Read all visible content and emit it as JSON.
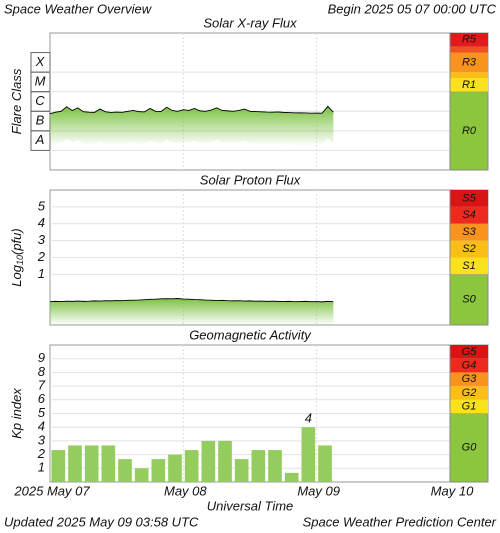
{
  "header": {
    "title": "Space Weather Overview",
    "begin": "Begin 2025 05 07 00:00 UTC"
  },
  "x_axis": {
    "labels": [
      "2025 May 07",
      "May 08",
      "May 09",
      "May 10"
    ],
    "title": "Universal Time"
  },
  "footer": {
    "updated": "Updated 2025 May 09 03:58 UTC",
    "source": "Space Weather Prediction Center"
  },
  "chart_data": [
    {
      "type": "line",
      "title": "Solar X-ray Flux",
      "ylabel": "Flare Class",
      "log": true,
      "ylim": [
        1e-09,
        0.01
      ],
      "yticks": [
        {
          "value": 1e-08,
          "label": "A"
        },
        {
          "value": 1e-07,
          "label": "B"
        },
        {
          "value": 1e-06,
          "label": "C"
        },
        {
          "value": 1e-05,
          "label": "M"
        },
        {
          "value": 0.0001,
          "label": "X"
        }
      ],
      "color": "#000000",
      "fill_color": "#7cc242",
      "values": [
        7.5e-07,
        9e-07,
        1e-06,
        1.7e-06,
        1.1e-06,
        1.5e-06,
        9.5e-07,
        9e-07,
        8.8e-07,
        1.3e-06,
        9.4e-07,
        8.7e-07,
        9.1e-07,
        8.9e-07,
        1e-06,
        1.1e-06,
        9.6e-07,
        9.3e-07,
        1.4e-06,
        1e-06,
        9.8e-07,
        1.6e-06,
        1.1e-06,
        1e-06,
        1.2e-06,
        1.1e-06,
        1.4e-06,
        1.05e-06,
        1e-06,
        1.15e-06,
        1.5e-06,
        1.1e-06,
        1.05e-06,
        1e-06,
        1.1e-06,
        1.3e-06,
        1e-06,
        9.7e-07,
        9.4e-07,
        9.1e-07,
        9e-07,
        9.3e-07,
        8.8e-07,
        8.6e-07,
        8.4e-07,
        8.3e-07,
        8.2e-07,
        8e-07,
        8.1e-07,
        8e-07,
        1.8e-06,
        9e-07
      ],
      "levels": [
        {
          "label": "R0",
          "from": null,
          "color": "#8cc63f"
        },
        {
          "label": "R1",
          "from": 1e-05,
          "color": "#f9e11e"
        },
        {
          "label": null,
          "from": 5e-05,
          "color": "#fbbd17"
        },
        {
          "label": "R3",
          "from": 0.0001,
          "color": "#f7931e"
        },
        {
          "label": null,
          "from": 0.001,
          "color": "#f04e23"
        },
        {
          "label": "R5",
          "from": 0.002,
          "color": "#e01b1b"
        }
      ]
    },
    {
      "type": "line",
      "title": "Solar Proton Flux",
      "ylabel": "Log",
      "ylabel_sub": "10",
      "ylabel_suffix": "(pfu)",
      "ylim": [
        -2,
        6
      ],
      "yticks": [
        1,
        2,
        3,
        4,
        5
      ],
      "color": "#000000",
      "fill_color": "#7cc242",
      "values": [
        -0.62,
        -0.6,
        -0.61,
        -0.59,
        -0.6,
        -0.58,
        -0.6,
        -0.59,
        -0.57,
        -0.58,
        -0.56,
        -0.57,
        -0.55,
        -0.56,
        -0.54,
        -0.53,
        -0.52,
        -0.5,
        -0.48,
        -0.47,
        -0.45,
        -0.44,
        -0.45,
        -0.43,
        -0.46,
        -0.47,
        -0.49,
        -0.5,
        -0.52,
        -0.53,
        -0.55,
        -0.54,
        -0.56,
        -0.57,
        -0.56,
        -0.58,
        -0.57,
        -0.59,
        -0.58,
        -0.6,
        -0.59,
        -0.6,
        -0.61,
        -0.6,
        -0.62,
        -0.61,
        -0.6,
        -0.62,
        -0.61,
        -0.63,
        -0.6,
        -0.62
      ],
      "levels": [
        {
          "label": "S0",
          "from": null,
          "color": "#8cc63f"
        },
        {
          "label": "S1",
          "from": 1,
          "color": "#f9e11e"
        },
        {
          "label": "S2",
          "from": 2,
          "color": "#fbbd17"
        },
        {
          "label": "S3",
          "from": 3,
          "color": "#f7931e"
        },
        {
          "label": "S4",
          "from": 4,
          "color": "#ee2a1e"
        },
        {
          "label": "S5",
          "from": 5,
          "color": "#d81414"
        }
      ]
    },
    {
      "type": "bar",
      "title": "Geomagnetic Activity",
      "ylabel": "Kp index",
      "ylim": [
        0,
        10
      ],
      "yticks": [
        1,
        2,
        3,
        4,
        5,
        6,
        7,
        8,
        9
      ],
      "color": "#94cc5e",
      "values": [
        2.33,
        2.67,
        2.67,
        2.67,
        1.67,
        1,
        1.67,
        2,
        2.33,
        3,
        3,
        1.67,
        2.33,
        2.33,
        0.67,
        4,
        2.67
      ],
      "value_labels": [
        null,
        null,
        null,
        null,
        null,
        null,
        null,
        null,
        null,
        null,
        null,
        null,
        null,
        null,
        null,
        "4",
        null
      ],
      "levels": [
        {
          "label": "G0",
          "from": null,
          "color": "#8cc63f"
        },
        {
          "label": "G1",
          "from": 5,
          "color": "#f9e11e"
        },
        {
          "label": "G2",
          "from": 6,
          "color": "#fbbd17"
        },
        {
          "label": "G3",
          "from": 7,
          "color": "#f7931e"
        },
        {
          "label": "G4",
          "from": 8,
          "color": "#ee2a1e"
        },
        {
          "label": "G5",
          "from": 9,
          "color": "#d81414"
        }
      ]
    }
  ]
}
